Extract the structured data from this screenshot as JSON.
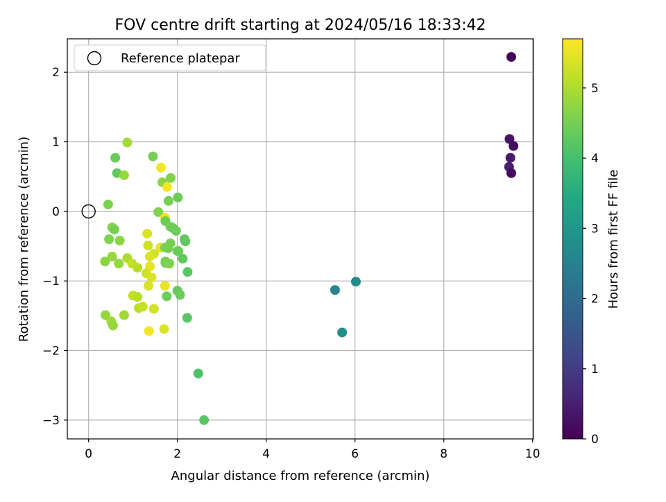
{
  "chart_data": {
    "type": "scatter",
    "title": "FOV centre drift starting at 2024/05/16 18:33:42",
    "xlabel": "Angular distance from reference (arcmin)",
    "ylabel": "Rotation from reference (arcmin)",
    "xlim": [
      -0.48,
      10.02
    ],
    "ylim": [
      -3.27,
      2.48
    ],
    "xticks": [
      0,
      2,
      4,
      6,
      8,
      10
    ],
    "yticks": [
      -3,
      -2,
      -1,
      0,
      1,
      2
    ],
    "grid": true,
    "legend": {
      "position": "top-left",
      "entries": [
        "Reference platepar"
      ]
    },
    "reference_point": {
      "x": 0,
      "y": 0
    },
    "colorbar": {
      "label": "Hours from first FF file",
      "colormap": "viridis",
      "range": [
        0,
        5.7
      ],
      "ticks": [
        0,
        1,
        2,
        3,
        4,
        5
      ]
    },
    "points": [
      {
        "x": 9.52,
        "y": 2.22,
        "c": 0.05
      },
      {
        "x": 9.48,
        "y": 1.04,
        "c": 0.3
      },
      {
        "x": 9.57,
        "y": 0.94,
        "c": 0.2
      },
      {
        "x": 9.5,
        "y": 0.77,
        "c": 0.4
      },
      {
        "x": 9.47,
        "y": 0.64,
        "c": 0.5
      },
      {
        "x": 9.52,
        "y": 0.55,
        "c": 0.15
      },
      {
        "x": 5.55,
        "y": -1.13,
        "c": 2.6
      },
      {
        "x": 6.02,
        "y": -1.01,
        "c": 2.7
      },
      {
        "x": 5.71,
        "y": -1.74,
        "c": 2.8
      },
      {
        "x": 0.87,
        "y": 0.99,
        "c": 4.9
      },
      {
        "x": 0.6,
        "y": 0.77,
        "c": 4.4
      },
      {
        "x": 0.64,
        "y": 0.55,
        "c": 4.3
      },
      {
        "x": 0.8,
        "y": 0.52,
        "c": 4.8
      },
      {
        "x": 0.44,
        "y": 0.1,
        "c": 4.6
      },
      {
        "x": 0.53,
        "y": -0.23,
        "c": 4.7
      },
      {
        "x": 0.58,
        "y": -0.26,
        "c": 4.5
      },
      {
        "x": 0.46,
        "y": -0.4,
        "c": 4.6
      },
      {
        "x": 0.7,
        "y": -0.42,
        "c": 4.7
      },
      {
        "x": 0.37,
        "y": -0.72,
        "c": 4.7
      },
      {
        "x": 0.53,
        "y": -0.65,
        "c": 4.8
      },
      {
        "x": 0.87,
        "y": -0.67,
        "c": 5.0
      },
      {
        "x": 0.68,
        "y": -0.75,
        "c": 4.8
      },
      {
        "x": 0.98,
        "y": -0.75,
        "c": 5.2
      },
      {
        "x": 1.1,
        "y": -0.81,
        "c": 5.1
      },
      {
        "x": 0.38,
        "y": -1.49,
        "c": 4.8
      },
      {
        "x": 0.51,
        "y": -1.58,
        "c": 4.9
      },
      {
        "x": 0.55,
        "y": -1.64,
        "c": 4.8
      },
      {
        "x": 0.8,
        "y": -1.49,
        "c": 4.9
      },
      {
        "x": 1.0,
        "y": -1.21,
        "c": 5.2
      },
      {
        "x": 1.1,
        "y": -1.23,
        "c": 5.1
      },
      {
        "x": 1.13,
        "y": -1.39,
        "c": 5.1
      },
      {
        "x": 1.22,
        "y": -1.37,
        "c": 5.2
      },
      {
        "x": 1.45,
        "y": 0.79,
        "c": 4.5
      },
      {
        "x": 1.63,
        "y": 0.63,
        "c": 5.6
      },
      {
        "x": 1.66,
        "y": 0.42,
        "c": 4.7
      },
      {
        "x": 1.77,
        "y": 0.35,
        "c": 5.6
      },
      {
        "x": 1.85,
        "y": 0.48,
        "c": 4.6
      },
      {
        "x": 1.8,
        "y": 0.15,
        "c": 4.5
      },
      {
        "x": 2.01,
        "y": 0.2,
        "c": 4.4
      },
      {
        "x": 1.57,
        "y": -0.01,
        "c": 4.6
      },
      {
        "x": 1.72,
        "y": -0.09,
        "c": 5.5
      },
      {
        "x": 1.73,
        "y": -0.14,
        "c": 4.4
      },
      {
        "x": 1.84,
        "y": -0.22,
        "c": 4.5
      },
      {
        "x": 1.9,
        "y": -0.24,
        "c": 4.4
      },
      {
        "x": 1.97,
        "y": -0.28,
        "c": 4.4
      },
      {
        "x": 1.32,
        "y": -0.32,
        "c": 5.4
      },
      {
        "x": 2.16,
        "y": -0.4,
        "c": 4.3
      },
      {
        "x": 2.18,
        "y": -0.43,
        "c": 4.3
      },
      {
        "x": 1.34,
        "y": -0.49,
        "c": 5.3
      },
      {
        "x": 1.84,
        "y": -0.46,
        "c": 4.5
      },
      {
        "x": 1.62,
        "y": -0.52,
        "c": 5.5
      },
      {
        "x": 1.72,
        "y": -0.52,
        "c": 4.6
      },
      {
        "x": 1.79,
        "y": -0.53,
        "c": 4.5
      },
      {
        "x": 2.0,
        "y": -0.57,
        "c": 4.4
      },
      {
        "x": 2.02,
        "y": -0.57,
        "c": 4.4
      },
      {
        "x": 1.47,
        "y": -0.61,
        "c": 5.3
      },
      {
        "x": 1.38,
        "y": -0.65,
        "c": 5.4
      },
      {
        "x": 2.12,
        "y": -0.68,
        "c": 4.3
      },
      {
        "x": 1.73,
        "y": -0.72,
        "c": 4.5
      },
      {
        "x": 1.73,
        "y": -0.74,
        "c": 4.5
      },
      {
        "x": 1.82,
        "y": -0.75,
        "c": 4.6
      },
      {
        "x": 1.38,
        "y": -0.79,
        "c": 5.5
      },
      {
        "x": 1.3,
        "y": -0.89,
        "c": 5.3
      },
      {
        "x": 2.23,
        "y": -0.87,
        "c": 4.2
      },
      {
        "x": 1.42,
        "y": -0.95,
        "c": 5.4
      },
      {
        "x": 1.35,
        "y": -1.07,
        "c": 5.4
      },
      {
        "x": 1.72,
        "y": -1.07,
        "c": 5.5
      },
      {
        "x": 2.0,
        "y": -1.14,
        "c": 4.3
      },
      {
        "x": 2.06,
        "y": -1.2,
        "c": 4.4
      },
      {
        "x": 1.76,
        "y": -1.22,
        "c": 4.4
      },
      {
        "x": 1.47,
        "y": -1.4,
        "c": 5.3
      },
      {
        "x": 2.22,
        "y": -1.53,
        "c": 4.2
      },
      {
        "x": 1.7,
        "y": -1.69,
        "c": 5.4
      },
      {
        "x": 1.36,
        "y": -1.72,
        "c": 5.6
      },
      {
        "x": 2.47,
        "y": -2.33,
        "c": 4.1
      },
      {
        "x": 2.6,
        "y": -3.0,
        "c": 4.2
      }
    ]
  }
}
